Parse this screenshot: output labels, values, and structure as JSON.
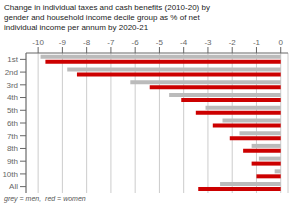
{
  "chart_data": {
    "type": "bar",
    "orientation": "horizontal",
    "title": "Change in individual taxes and cash benefits (2010-20) by\ngender and household income decile group as % of net\nindividual income per annum by 2020-21",
    "annotations": [
      "grey = men,  red = women"
    ],
    "categories": [
      "1st",
      "2nd",
      "3rd",
      "4th",
      "5th",
      "6th",
      "7th",
      "8th",
      "9th",
      "10th",
      "All"
    ],
    "series": [
      {
        "name": "men",
        "color": "#bbbbbb",
        "values": [
          -9.9,
          -8.8,
          -6.2,
          -4.6,
          -3.1,
          -2.4,
          -1.7,
          -1.2,
          -0.9,
          -0.25,
          -2.5
        ]
      },
      {
        "name": "women",
        "color": "#cc0000",
        "values": [
          -9.7,
          -8.4,
          -5.4,
          -4.1,
          -3.5,
          -2.8,
          -2.1,
          -1.55,
          -1.2,
          -1.0,
          -3.4
        ]
      }
    ],
    "xlim": [
      -10.5,
      0.3
    ],
    "xticks": [
      -10,
      -9,
      -8,
      -7,
      -6,
      -5,
      -4,
      -3,
      -2,
      -1,
      0
    ],
    "grid": true
  }
}
